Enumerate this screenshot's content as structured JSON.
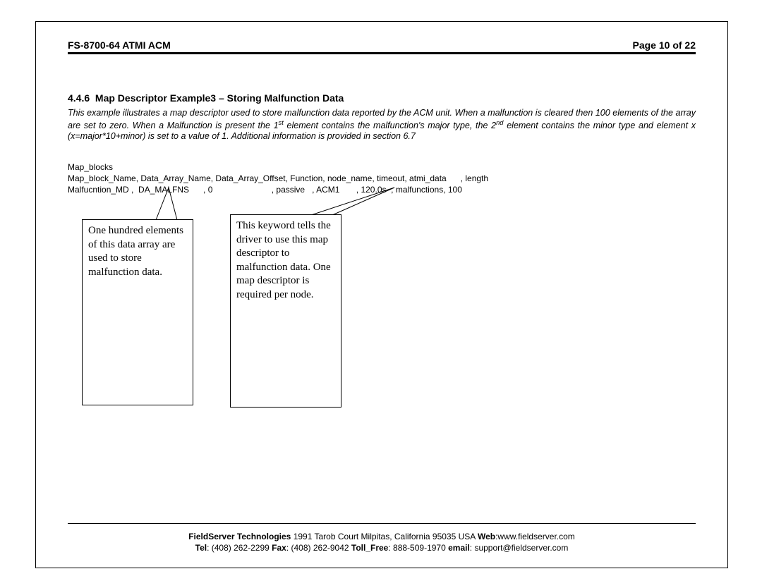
{
  "header": {
    "doc_id": "FS-8700-64 ATMI ACM",
    "page_label": "Page 10 of 22"
  },
  "section": {
    "number": "4.4.6",
    "title": "Map Descriptor Example3 – Storing Malfunction Data"
  },
  "body_paragraph_html": "This example illustrates a  map descriptor used to store malfunction data reported by the ACM unit.  When a malfunction is cleared then 100 elements of the array are set to zero. When a Malfunction is present the 1<sup>st</sup> element contains the malfunction's major type, the 2<sup>nd</sup> element contains the minor type and element x (x=major*10+minor) is set to a value of 1. Additional information is provided in section 6.7",
  "code": {
    "line1": "Map_blocks",
    "line2": "Map_block_Name, Data_Array_Name, Data_Array_Offset, Function, node_name, timeout, atmi_data      , length",
    "line3": "Malfucntion_MD ,  DA_MALFNS      , 0                         , passive   , ACM1       , 120.0s  , malfunctions, 100"
  },
  "callouts": {
    "c1": "One hundred elements of this data array are used to store malfunction data.",
    "c2": "This keyword tells the driver to use this map descriptor to malfunction data. One map descriptor is required per node."
  },
  "footer": {
    "line1_html": "<b>FieldServer Technologies</b> 1991 Tarob Court Milpitas, California 95035 USA  <b>Web</b>:www.fieldserver.com",
    "line2_html": "<b>Tel</b>: (408) 262-2299  <b>Fax</b>: (408) 262-9042  <b>Toll_Free</b>: 888-509-1970  <b>email</b>: support@fieldserver.com"
  }
}
